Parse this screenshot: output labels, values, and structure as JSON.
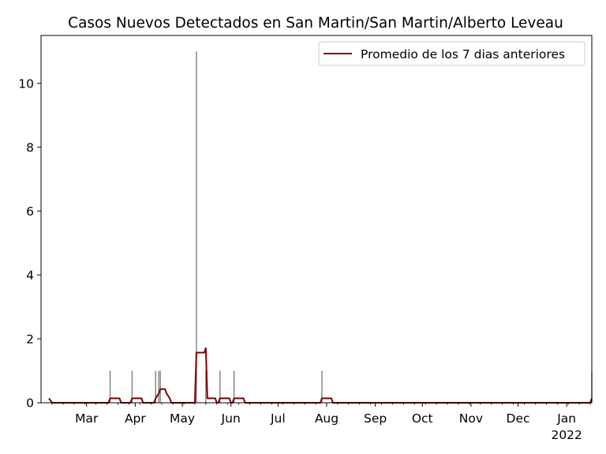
{
  "chart_data": {
    "type": "bar",
    "title": "Casos Nuevos Detectados en San Martin/San Martin/Alberto Leveau",
    "xlabel": "",
    "ylabel": "",
    "x_range": [
      "2021-02-05",
      "2022-01-17"
    ],
    "ylim": [
      0,
      11.5
    ],
    "y_ticks": [
      0,
      2,
      4,
      6,
      8,
      10
    ],
    "x_ticks": [
      {
        "date": "2021-03-01",
        "label": "Mar"
      },
      {
        "date": "2021-04-01",
        "label": "Apr"
      },
      {
        "date": "2021-05-01",
        "label": "May"
      },
      {
        "date": "2021-06-01",
        "label": "Jun"
      },
      {
        "date": "2021-07-01",
        "label": "Jul"
      },
      {
        "date": "2021-08-01",
        "label": "Aug"
      },
      {
        "date": "2021-09-01",
        "label": "Sep"
      },
      {
        "date": "2021-10-01",
        "label": "Oct"
      },
      {
        "date": "2021-11-01",
        "label": "Nov"
      },
      {
        "date": "2021-12-01",
        "label": "Dec"
      },
      {
        "date": "2022-01-01",
        "label": "Jan",
        "sublabel": "2022"
      }
    ],
    "grid": false,
    "legend_position": "top-right",
    "daily_cases": {
      "color": "#808080",
      "points": [
        {
          "date": "2021-02-05",
          "value": 0
        },
        {
          "date": "2021-03-16",
          "value": 1
        },
        {
          "date": "2021-03-30",
          "value": 1
        },
        {
          "date": "2021-04-14",
          "value": 1
        },
        {
          "date": "2021-04-16",
          "value": 1
        },
        {
          "date": "2021-04-17",
          "value": 1
        },
        {
          "date": "2021-05-10",
          "value": 11
        },
        {
          "date": "2021-05-16",
          "value": 1
        },
        {
          "date": "2021-05-25",
          "value": 1
        },
        {
          "date": "2021-06-03",
          "value": 1
        },
        {
          "date": "2021-07-29",
          "value": 1
        },
        {
          "date": "2022-01-17",
          "value": 1
        }
      ]
    },
    "series": [
      {
        "name": "Promedio de los 7 dias anteriores",
        "color": "#800000",
        "points": [
          {
            "date": "2021-02-05",
            "value": 0.14
          },
          {
            "date": "2021-02-07",
            "value": 0
          },
          {
            "date": "2021-03-15",
            "value": 0
          },
          {
            "date": "2021-03-16",
            "value": 0.14
          },
          {
            "date": "2021-03-22",
            "value": 0.14
          },
          {
            "date": "2021-03-23",
            "value": 0
          },
          {
            "date": "2021-03-29",
            "value": 0
          },
          {
            "date": "2021-03-30",
            "value": 0.14
          },
          {
            "date": "2021-04-05",
            "value": 0.14
          },
          {
            "date": "2021-04-06",
            "value": 0
          },
          {
            "date": "2021-04-13",
            "value": 0
          },
          {
            "date": "2021-04-14",
            "value": 0.14
          },
          {
            "date": "2021-04-16",
            "value": 0.29
          },
          {
            "date": "2021-04-17",
            "value": 0.43
          },
          {
            "date": "2021-04-20",
            "value": 0.43
          },
          {
            "date": "2021-04-21",
            "value": 0.29
          },
          {
            "date": "2021-04-23",
            "value": 0.14
          },
          {
            "date": "2021-04-24",
            "value": 0
          },
          {
            "date": "2021-05-09",
            "value": 0
          },
          {
            "date": "2021-05-10",
            "value": 1.57
          },
          {
            "date": "2021-05-15",
            "value": 1.57
          },
          {
            "date": "2021-05-16",
            "value": 1.71
          },
          {
            "date": "2021-05-17",
            "value": 0.14
          },
          {
            "date": "2021-05-22",
            "value": 0.14
          },
          {
            "date": "2021-05-23",
            "value": 0
          },
          {
            "date": "2021-05-24",
            "value": 0
          },
          {
            "date": "2021-05-25",
            "value": 0.14
          },
          {
            "date": "2021-05-31",
            "value": 0.14
          },
          {
            "date": "2021-06-01",
            "value": 0
          },
          {
            "date": "2021-06-02",
            "value": 0
          },
          {
            "date": "2021-06-03",
            "value": 0.14
          },
          {
            "date": "2021-06-09",
            "value": 0.14
          },
          {
            "date": "2021-06-10",
            "value": 0
          },
          {
            "date": "2021-07-28",
            "value": 0
          },
          {
            "date": "2021-07-29",
            "value": 0.14
          },
          {
            "date": "2021-08-04",
            "value": 0.14
          },
          {
            "date": "2021-08-05",
            "value": 0
          },
          {
            "date": "2022-01-16",
            "value": 0
          },
          {
            "date": "2022-01-17",
            "value": 0.14
          }
        ]
      }
    ]
  }
}
